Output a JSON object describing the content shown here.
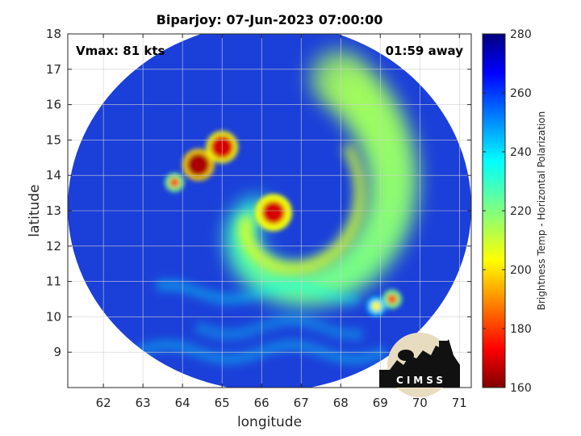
{
  "chart_data": {
    "type": "heatmap",
    "title": "Biparjoy: 07-Jun-2023 07:00:00",
    "xlabel": "longitude",
    "ylabel": "latitude",
    "xlim": [
      61.1,
      71.3
    ],
    "ylim": [
      8.0,
      18.0
    ],
    "x_ticks": [
      62,
      63,
      64,
      65,
      66,
      67,
      68,
      69,
      70,
      71
    ],
    "y_ticks": [
      9,
      10,
      11,
      12,
      13,
      14,
      15,
      16,
      17,
      18
    ],
    "grid": true,
    "annotations": {
      "vmax": "Vmax: 81 kts",
      "away": "01:59 away"
    },
    "colorbar": {
      "label": "Brightness Temp - Horizontal Polarization",
      "range": [
        160,
        280
      ],
      "ticks": [
        160,
        180,
        200,
        220,
        240,
        260,
        280
      ],
      "colormap": "jet"
    },
    "storm_center": {
      "lon": 66.3,
      "lat": 12.95
    },
    "swath": {
      "center_lon": 66.2,
      "center_lat": 13.1
    },
    "features": [
      {
        "kind": "eyewall",
        "lon": 66.3,
        "lat": 12.95,
        "value": 170
      },
      {
        "kind": "rainband-core",
        "lon": 64.4,
        "lat": 14.3,
        "value": 165
      },
      {
        "kind": "rainband-core",
        "lon": 65.0,
        "lat": 14.8,
        "value": 170
      },
      {
        "kind": "convective-cell",
        "lon": 63.8,
        "lat": 13.8,
        "value": 185
      },
      {
        "kind": "convective-cell",
        "lon": 69.3,
        "lat": 10.5,
        "value": 185
      },
      {
        "kind": "convective-cell",
        "lon": 68.9,
        "lat": 10.3,
        "value": 205
      }
    ],
    "logo_text": "CIMSS"
  },
  "colors": {
    "background_field": "#1a3dd6",
    "outside": "#ffffff",
    "grid": "#d0d0d0"
  }
}
